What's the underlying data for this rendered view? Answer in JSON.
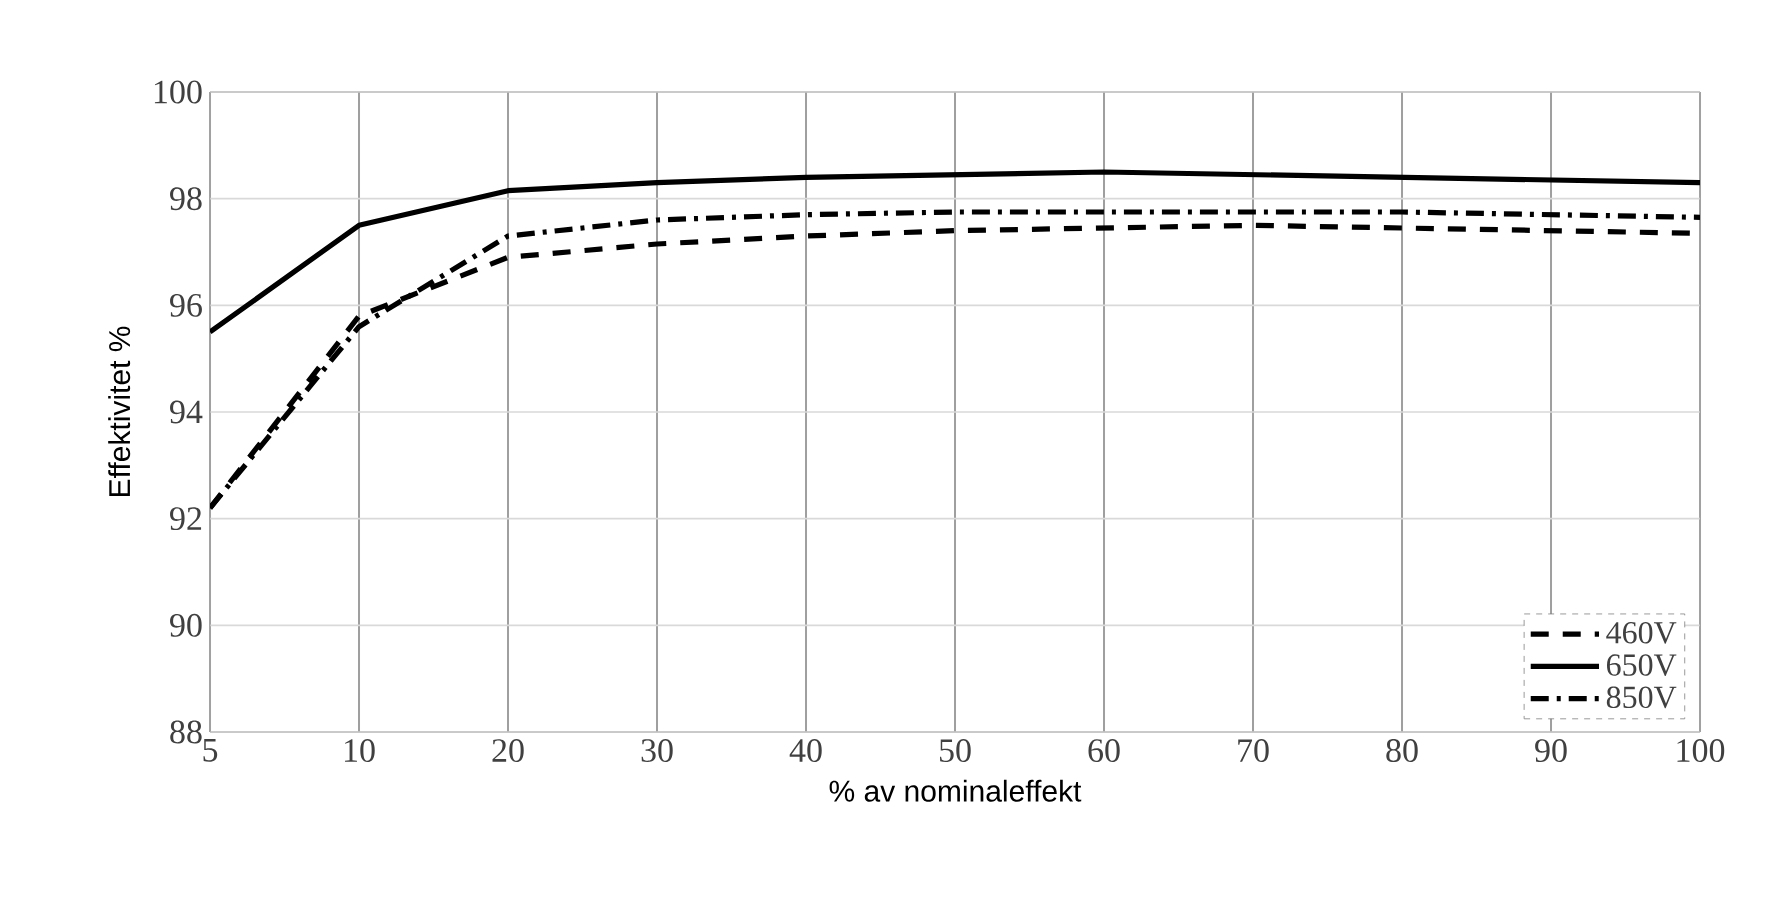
{
  "chart_data": {
    "type": "line",
    "xlabel": "% av nominaleffekt",
    "ylabel": "Effektivitet %",
    "categories": [
      "5",
      "10",
      "20",
      "30",
      "40",
      "50",
      "60",
      "70",
      "80",
      "90",
      "100"
    ],
    "series": [
      {
        "name": "460V",
        "color": "#000000",
        "line_style": "dashed",
        "values": [
          92.2,
          95.8,
          96.9,
          97.15,
          97.3,
          97.4,
          97.45,
          97.5,
          97.45,
          97.4,
          97.35
        ]
      },
      {
        "name": "650V",
        "color": "#000000",
        "line_style": "solid",
        "values": [
          95.5,
          97.5,
          98.15,
          98.3,
          98.4,
          98.45,
          98.5,
          98.45,
          98.4,
          98.35,
          98.3
        ]
      },
      {
        "name": "850V",
        "color": "#000000",
        "line_style": "dashdot",
        "values": [
          92.2,
          95.6,
          97.3,
          97.6,
          97.7,
          97.75,
          97.75,
          97.75,
          97.75,
          97.7,
          97.65
        ]
      }
    ],
    "ylim": [
      88,
      100
    ],
    "yticks": [
      88,
      90,
      92,
      94,
      96,
      98,
      100
    ],
    "grid": true,
    "legend": "bottom right",
    "marker": "none"
  }
}
